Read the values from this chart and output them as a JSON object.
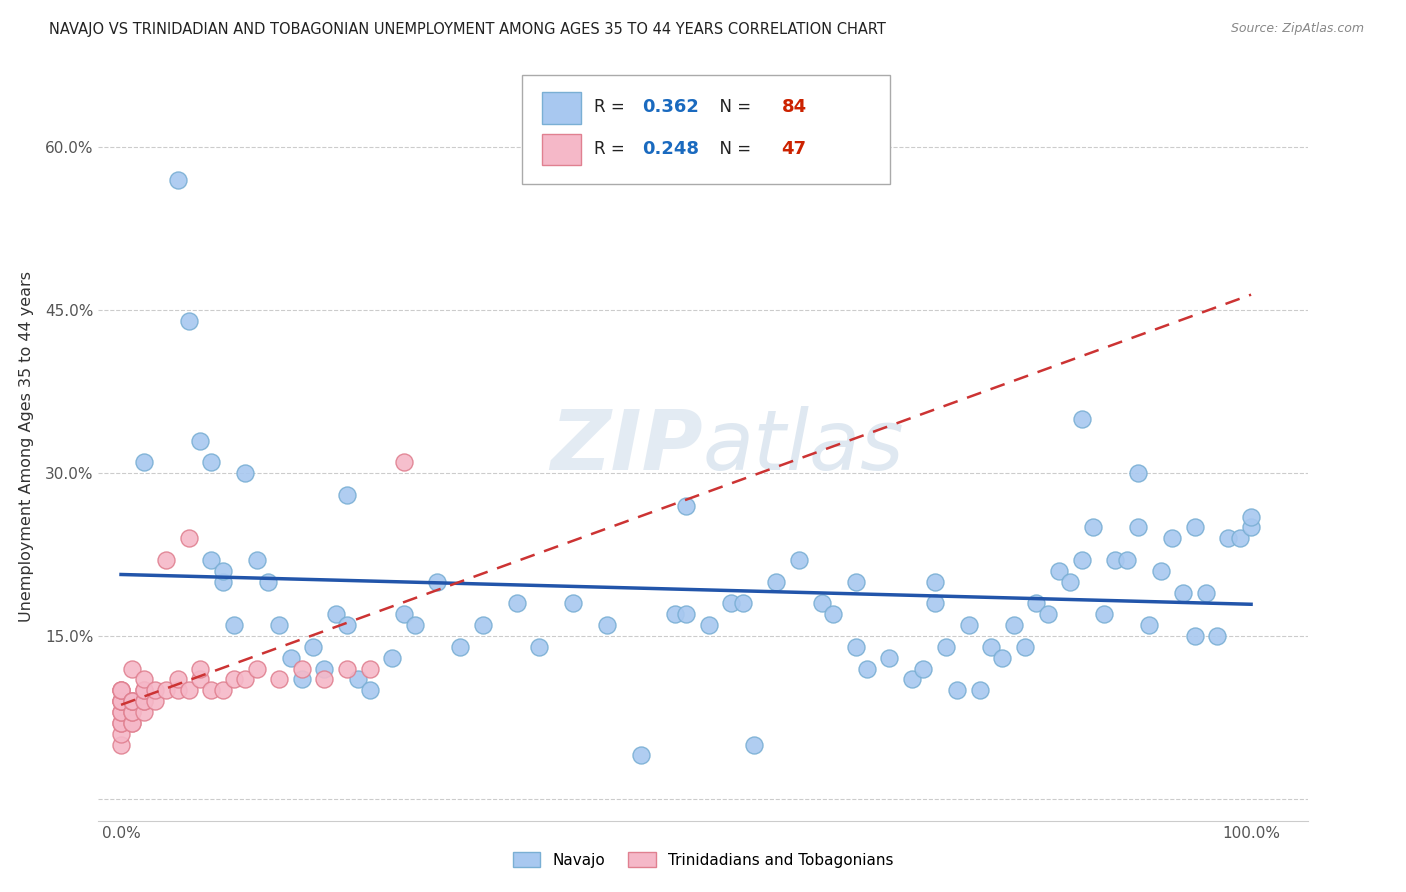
{
  "title": "NAVAJO VS TRINIDADIAN AND TOBAGONIAN UNEMPLOYMENT AMONG AGES 35 TO 44 YEARS CORRELATION CHART",
  "source": "Source: ZipAtlas.com",
  "ylabel": "Unemployment Among Ages 35 to 44 years",
  "xlim": [
    -0.02,
    1.05
  ],
  "ylim": [
    -0.02,
    0.67
  ],
  "navajo_R": 0.362,
  "navajo_N": 84,
  "trinidadian_R": 0.248,
  "trinidadian_N": 47,
  "navajo_color": "#a8c8f0",
  "navajo_edge_color": "#7aafd4",
  "trinidadian_color": "#f5b8c8",
  "trinidadian_edge_color": "#e08090",
  "trend_navajo_color": "#2255aa",
  "trend_trinidadian_color": "#cc3333",
  "watermark": "ZIPatlas",
  "navajo_x": [
    0.02,
    0.05,
    0.06,
    0.07,
    0.08,
    0.08,
    0.09,
    0.09,
    0.1,
    0.11,
    0.12,
    0.13,
    0.14,
    0.15,
    0.16,
    0.17,
    0.18,
    0.19,
    0.2,
    0.21,
    0.22,
    0.24,
    0.25,
    0.26,
    0.28,
    0.3,
    0.32,
    0.35,
    0.37,
    0.4,
    0.43,
    0.46,
    0.49,
    0.5,
    0.52,
    0.54,
    0.56,
    0.58,
    0.6,
    0.62,
    0.63,
    0.65,
    0.66,
    0.68,
    0.7,
    0.71,
    0.72,
    0.73,
    0.74,
    0.75,
    0.76,
    0.77,
    0.78,
    0.79,
    0.8,
    0.81,
    0.82,
    0.83,
    0.84,
    0.85,
    0.86,
    0.87,
    0.88,
    0.89,
    0.9,
    0.91,
    0.92,
    0.93,
    0.94,
    0.95,
    0.96,
    0.97,
    0.98,
    0.99,
    1.0,
    1.0,
    0.2,
    0.5,
    0.55,
    0.65,
    0.72,
    0.85,
    0.9,
    0.95
  ],
  "navajo_y": [
    0.31,
    0.57,
    0.44,
    0.33,
    0.31,
    0.22,
    0.2,
    0.21,
    0.16,
    0.3,
    0.22,
    0.2,
    0.16,
    0.13,
    0.11,
    0.14,
    0.12,
    0.17,
    0.16,
    0.11,
    0.1,
    0.13,
    0.17,
    0.16,
    0.2,
    0.14,
    0.16,
    0.18,
    0.14,
    0.18,
    0.16,
    0.04,
    0.17,
    0.17,
    0.16,
    0.18,
    0.05,
    0.2,
    0.22,
    0.18,
    0.17,
    0.14,
    0.12,
    0.13,
    0.11,
    0.12,
    0.18,
    0.14,
    0.1,
    0.16,
    0.1,
    0.14,
    0.13,
    0.16,
    0.14,
    0.18,
    0.17,
    0.21,
    0.2,
    0.22,
    0.25,
    0.17,
    0.22,
    0.22,
    0.25,
    0.16,
    0.21,
    0.24,
    0.19,
    0.25,
    0.19,
    0.15,
    0.24,
    0.24,
    0.25,
    0.26,
    0.28,
    0.27,
    0.18,
    0.2,
    0.2,
    0.35,
    0.3,
    0.15
  ],
  "trinidadian_x": [
    0.0,
    0.0,
    0.0,
    0.0,
    0.0,
    0.0,
    0.0,
    0.0,
    0.0,
    0.0,
    0.0,
    0.0,
    0.01,
    0.01,
    0.01,
    0.01,
    0.01,
    0.01,
    0.01,
    0.01,
    0.02,
    0.02,
    0.02,
    0.02,
    0.02,
    0.02,
    0.03,
    0.03,
    0.04,
    0.04,
    0.05,
    0.05,
    0.06,
    0.06,
    0.07,
    0.07,
    0.08,
    0.09,
    0.1,
    0.11,
    0.12,
    0.14,
    0.16,
    0.18,
    0.2,
    0.22,
    0.25
  ],
  "trinidadian_y": [
    0.05,
    0.06,
    0.07,
    0.07,
    0.08,
    0.08,
    0.09,
    0.09,
    0.09,
    0.1,
    0.1,
    0.1,
    0.07,
    0.07,
    0.08,
    0.08,
    0.09,
    0.09,
    0.09,
    0.12,
    0.08,
    0.09,
    0.09,
    0.1,
    0.1,
    0.11,
    0.09,
    0.1,
    0.1,
    0.22,
    0.1,
    0.11,
    0.1,
    0.24,
    0.11,
    0.12,
    0.1,
    0.1,
    0.11,
    0.11,
    0.12,
    0.11,
    0.12,
    0.11,
    0.12,
    0.12,
    0.31
  ]
}
